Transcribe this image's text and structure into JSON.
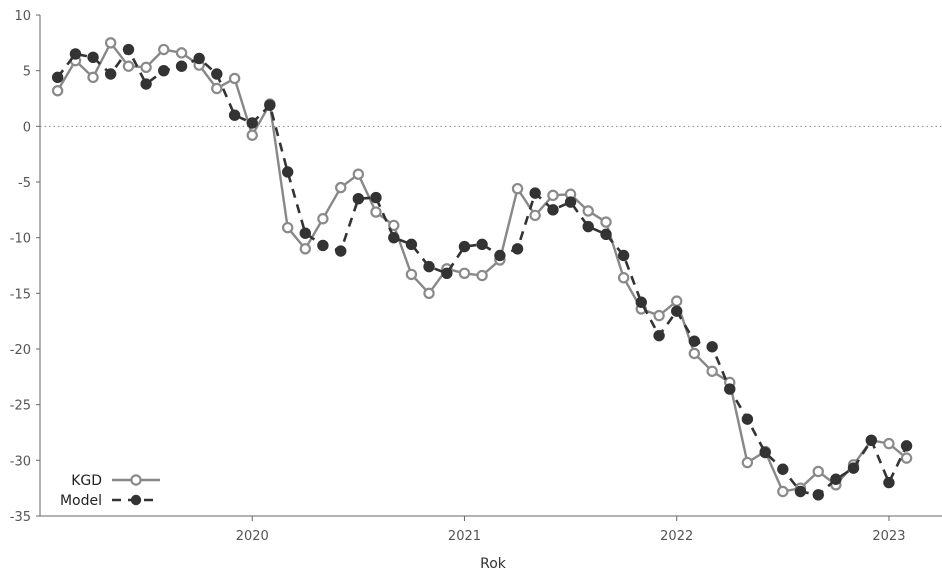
{
  "chart_data": {
    "type": "line",
    "xlabel": "Rok",
    "ylabel": "",
    "ylim": [
      -35,
      10
    ],
    "xlim": [
      2019.0,
      2023.25
    ],
    "x_ticks": [
      2020,
      2021,
      2022,
      2023
    ],
    "y_ticks": [
      10,
      5,
      0,
      -5,
      -10,
      -15,
      -20,
      -25,
      -30,
      -35
    ],
    "zero_line": true,
    "legend_position": "bottom-left",
    "x": [
      2019.083,
      2019.167,
      2019.25,
      2019.333,
      2019.417,
      2019.5,
      2019.583,
      2019.667,
      2019.75,
      2019.833,
      2019.917,
      2020.0,
      2020.083,
      2020.167,
      2020.25,
      2020.333,
      2020.417,
      2020.5,
      2020.583,
      2020.667,
      2020.75,
      2020.833,
      2020.917,
      2021.0,
      2021.083,
      2021.167,
      2021.25,
      2021.333,
      2021.417,
      2021.5,
      2021.583,
      2021.667,
      2021.75,
      2021.833,
      2021.917,
      2022.0,
      2022.083,
      2022.167,
      2022.25,
      2022.333,
      2022.417,
      2022.5,
      2022.583,
      2022.667,
      2022.75,
      2022.833,
      2022.917,
      2023.0,
      2023.083,
      2023.167
    ],
    "series": [
      {
        "name": "KGD",
        "style": "solid",
        "color": "#888888",
        "marker": "hollow",
        "values": [
          3.2,
          5.9,
          4.4,
          7.5,
          5.4,
          5.3,
          6.9,
          6.6,
          5.5,
          3.4,
          4.3,
          -0.8,
          2.0,
          -9.1,
          -11.0,
          -8.3,
          -5.5,
          -4.3,
          -7.7,
          -8.9,
          -13.3,
          -15.0,
          -12.8,
          -13.2,
          -13.4,
          -12.0,
          -5.6,
          -8.0,
          -6.2,
          -6.1,
          -7.6,
          -8.6,
          -13.6,
          -16.4,
          -17.0,
          -15.7,
          -20.4,
          -22.0,
          -23.0,
          -30.2,
          -29.2,
          -32.8,
          -32.5,
          -31.0,
          -32.2,
          -30.4,
          -28.2,
          -28.5,
          -29.8,
          null
        ],
        "values_note": ""
      },
      {
        "name": "Model",
        "style": "dashed",
        "color": "#333333",
        "marker": "filled",
        "values": [
          4.4,
          6.5,
          6.2,
          4.7,
          6.9,
          3.8,
          5.0,
          5.4,
          6.1,
          4.7,
          1.0,
          0.3,
          1.9,
          -4.1,
          -9.6,
          -10.7,
          -11.2,
          -6.5,
          -6.4,
          -10.0,
          -10.6,
          -12.6,
          -13.2,
          -10.8,
          -10.6,
          -11.6,
          -11.0,
          -6.0,
          -7.5,
          -6.8,
          -9.0,
          -9.7,
          -11.6,
          -15.8,
          -18.8,
          -16.6,
          -19.3,
          -19.8,
          -23.6,
          -26.3,
          -29.3,
          -30.8,
          -32.8,
          -33.1,
          -31.7,
          -30.7,
          -28.2,
          -32.0,
          -28.7,
          null
        ]
      }
    ]
  }
}
